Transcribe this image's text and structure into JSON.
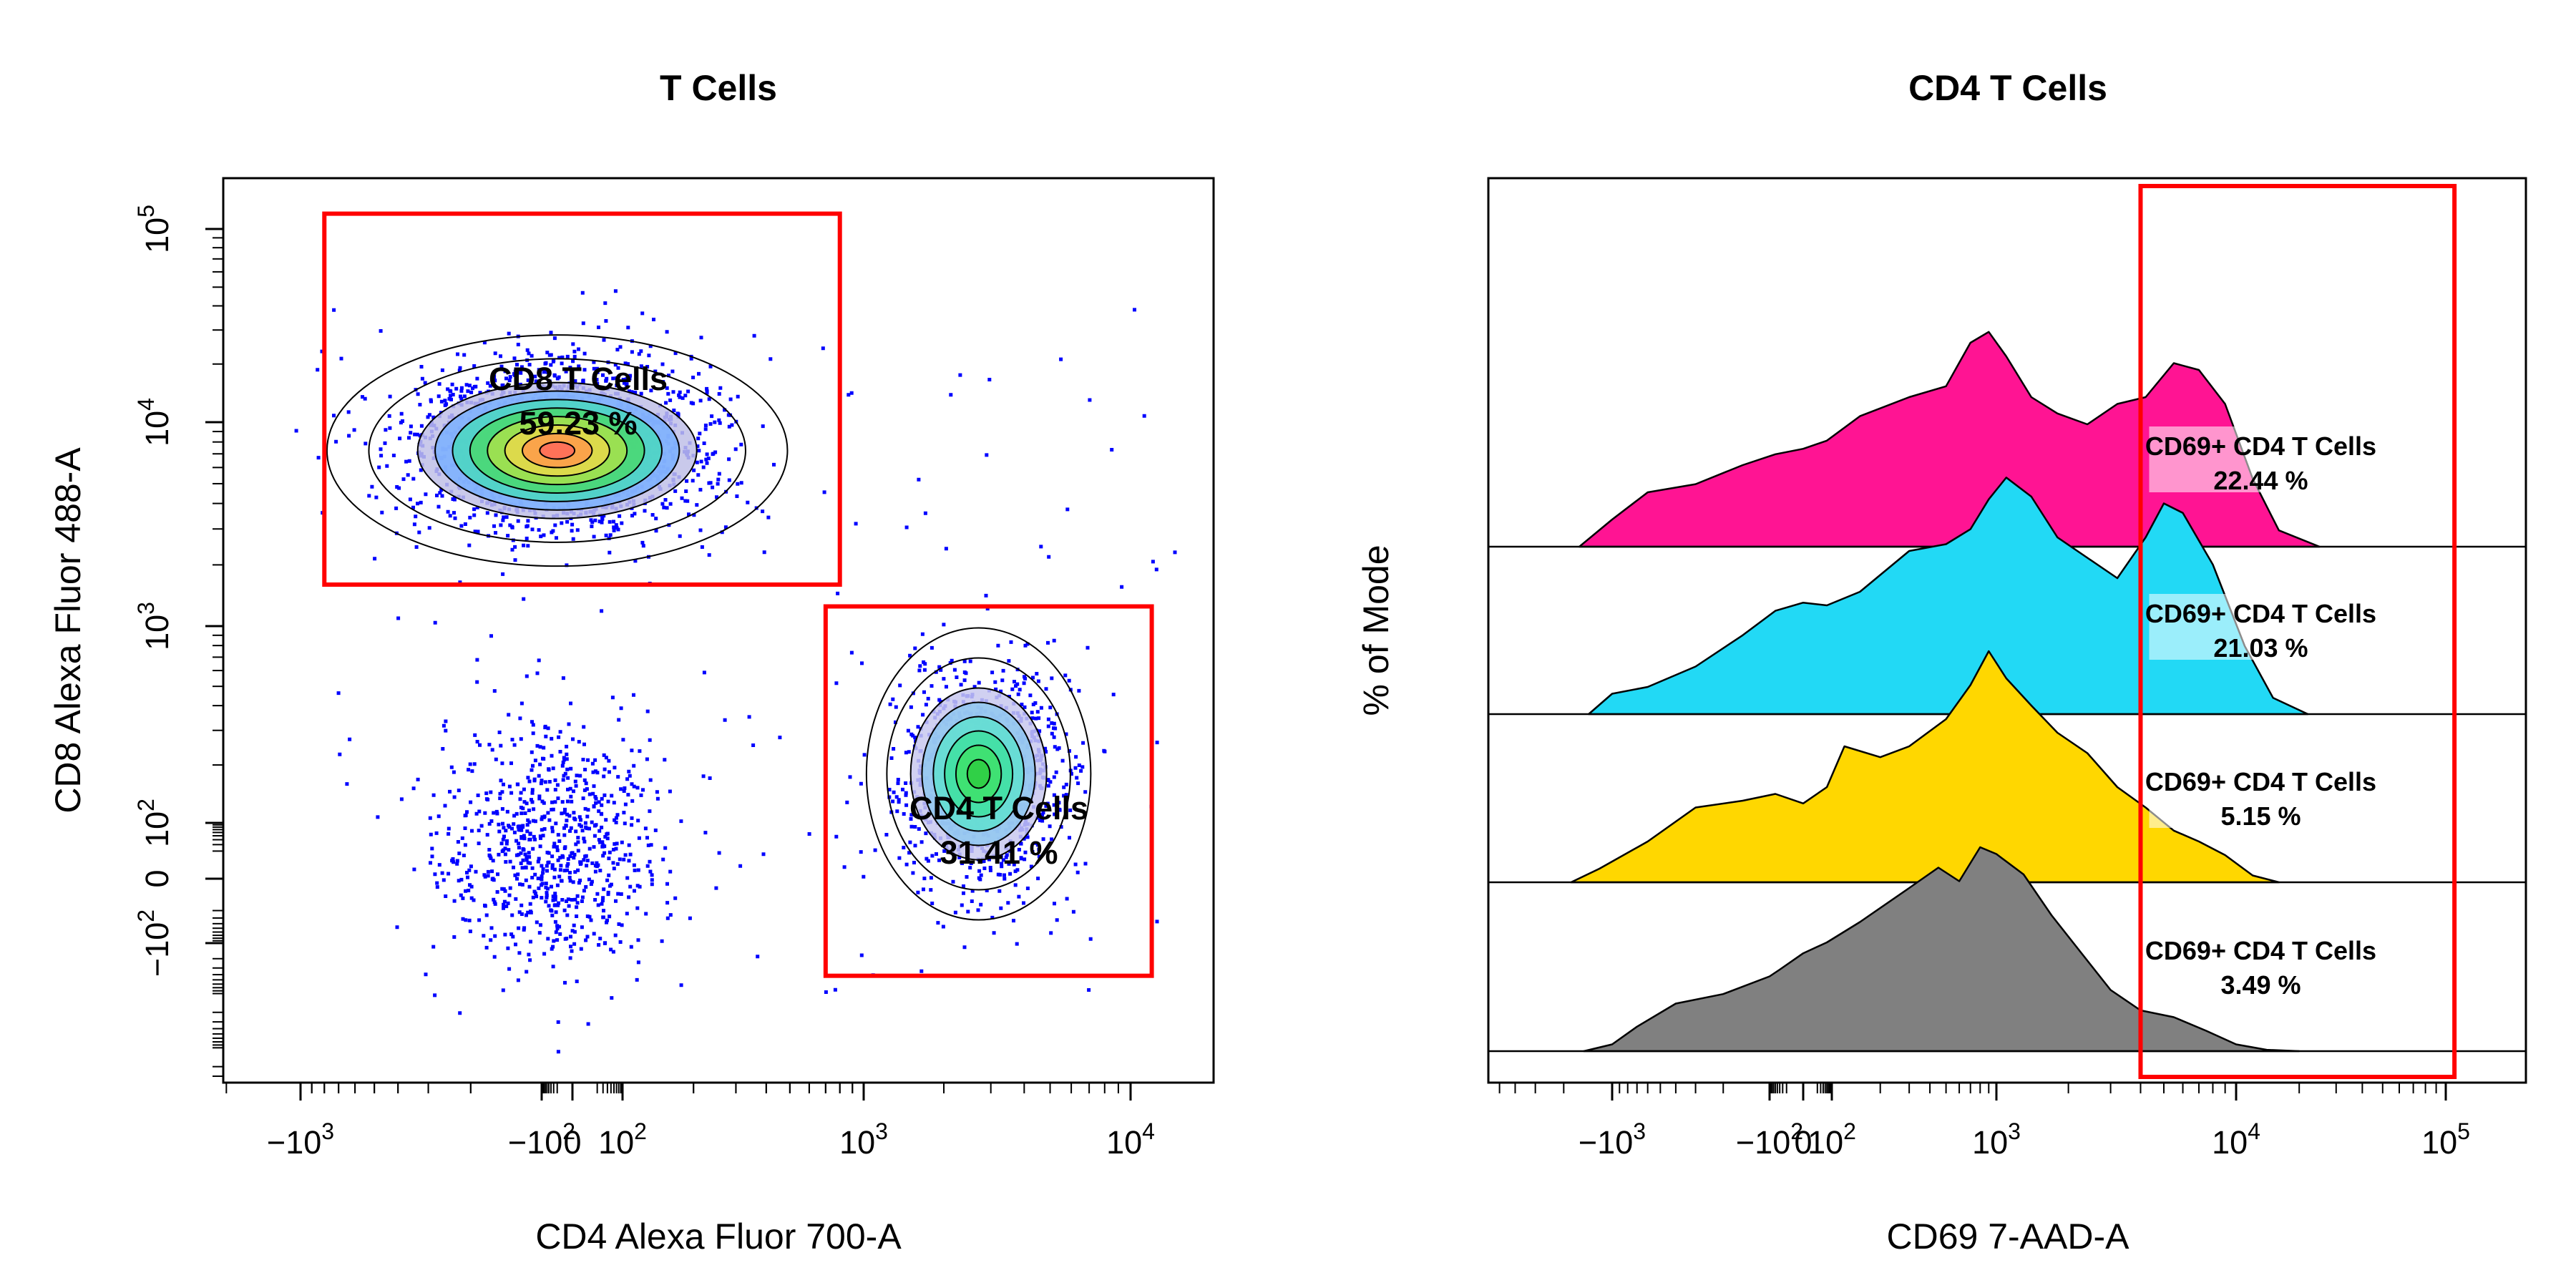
{
  "chart_data": [
    {
      "type": "scatter",
      "subtype": "flow-cytometry-dot-plot-with-density-contours",
      "title": "T Cells",
      "xlabel": "CD4 Alexa Fluor 700-A",
      "ylabel": "CD8 Alexa Fluor 488-A",
      "scale": "biexponential",
      "xlim": [
        -2000,
        30000
      ],
      "ylim": [
        -400,
        150000
      ],
      "x_ticks": [
        {
          "label": "−10",
          "sup": "3",
          "value": -1000
        },
        {
          "label": "−10",
          "sup": "2",
          "value": -100
        },
        {
          "label": "0",
          "sup": "",
          "value": 0
        },
        {
          "label": "10",
          "sup": "2",
          "value": 100
        },
        {
          "label": "10",
          "sup": "3",
          "value": 1000
        },
        {
          "label": "10",
          "sup": "4",
          "value": 10000
        }
      ],
      "y_ticks": [
        {
          "label": "10",
          "sup": "5",
          "value": 100000
        },
        {
          "label": "10",
          "sup": "4",
          "value": 10000
        },
        {
          "label": "10",
          "sup": "3",
          "value": 1000
        },
        {
          "label": "10",
          "sup": "2",
          "value": 100
        },
        {
          "label": "0",
          "sup": "",
          "value": 0
        },
        {
          "label": "−10",
          "sup": "2",
          "value": -100
        }
      ],
      "point_color": "#0000ff",
      "populations": [
        {
          "name": "CD8+ cluster",
          "x_center": -20,
          "y_center": 8000,
          "approx_points": 1900
        },
        {
          "name": "CD4+ cluster",
          "x_center": 2700,
          "y_center": 180,
          "approx_points": 1100
        },
        {
          "name": "double-negative cluster",
          "x_center": -40,
          "y_center": 30,
          "approx_points": 750
        }
      ],
      "gates": [
        {
          "label": "CD8 T Cells",
          "percent": "59.23 %",
          "x_range": [
            -800,
            800
          ],
          "y_range": [
            1600,
            120000
          ],
          "color": "#ff0000"
        },
        {
          "label": "CD4 T Cells",
          "percent": "31.41 %",
          "x_range": [
            700,
            12000
          ],
          "y_range": [
            -420,
            1250
          ],
          "color": "#ff0000"
        }
      ]
    },
    {
      "type": "area",
      "subtype": "stacked-offset-histograms",
      "title": "CD4 T Cells",
      "xlabel": "CD69 7-AAD-A",
      "ylabel": "% of Mode",
      "scale": "biexponential",
      "xlim": [
        -2500,
        150000
      ],
      "x_ticks": [
        {
          "label": "−10",
          "sup": "3",
          "value": -1000
        },
        {
          "label": "−10",
          "sup": "2",
          "value": -100
        },
        {
          "label": "0",
          "sup": "",
          "value": 0
        },
        {
          "label": "10",
          "sup": "2",
          "value": 100
        },
        {
          "label": "10",
          "sup": "3",
          "value": 1000
        },
        {
          "label": "10",
          "sup": "4",
          "value": 10000
        },
        {
          "label": "10",
          "sup": "5",
          "value": 100000
        }
      ],
      "gate": {
        "x_range": [
          4000,
          110000
        ],
        "color": "#ff0000"
      },
      "series": [
        {
          "label": "CD69+ CD4 T Cells",
          "percent": "22.44 %",
          "color": "#ff1493",
          "x": [
            -1600,
            -1000,
            -600,
            -300,
            -150,
            -60,
            0,
            60,
            150,
            300,
            500,
            700,
            900,
            1100,
            1400,
            1800,
            2400,
            3200,
            4200,
            5500,
            7000,
            9000,
            12000,
            16000,
            25000
          ],
          "y": [
            0,
            0.2,
            0.4,
            0.46,
            0.6,
            0.68,
            0.72,
            0.78,
            0.96,
            1.1,
            1.18,
            1.5,
            1.58,
            1.4,
            1.1,
            0.98,
            0.9,
            1.05,
            1.1,
            1.35,
            1.3,
            1.05,
            0.5,
            0.12,
            0
          ]
        },
        {
          "label": "CD69+ CD4 T Cells",
          "percent": "21.03 %",
          "color": "#22d9f5",
          "x": [
            -1400,
            -1000,
            -600,
            -300,
            -150,
            -60,
            0,
            60,
            150,
            300,
            500,
            700,
            900,
            1100,
            1400,
            1800,
            2400,
            3200,
            4200,
            5000,
            6000,
            8000,
            11000,
            15000,
            22000
          ],
          "y": [
            0,
            0.15,
            0.2,
            0.35,
            0.58,
            0.76,
            0.82,
            0.8,
            0.9,
            1.2,
            1.25,
            1.36,
            1.58,
            1.74,
            1.6,
            1.3,
            1.15,
            1.0,
            1.3,
            1.55,
            1.48,
            1.1,
            0.5,
            0.12,
            0
          ]
        },
        {
          "label": "CD69+ CD4 T Cells",
          "percent": "5.15 %",
          "color": "#ffd700",
          "x": [
            -1800,
            -1200,
            -600,
            -300,
            -150,
            -60,
            0,
            60,
            120,
            200,
            300,
            500,
            700,
            900,
            1100,
            1400,
            1800,
            2400,
            3200,
            4200,
            5500,
            7000,
            9000,
            12000,
            16000
          ],
          "y": [
            0,
            0.1,
            0.3,
            0.55,
            0.6,
            0.65,
            0.58,
            0.7,
            1.0,
            0.92,
            1.0,
            1.2,
            1.45,
            1.7,
            1.5,
            1.3,
            1.1,
            0.95,
            0.7,
            0.55,
            0.38,
            0.3,
            0.2,
            0.05,
            0
          ]
        },
        {
          "label": "CD69+ CD4 T Cells",
          "percent": "3.49 %",
          "color": "#808080",
          "x": [
            -1500,
            -1000,
            -700,
            -400,
            -200,
            -100,
            -40,
            0,
            60,
            150,
            300,
            450,
            600,
            800,
            1000,
            1300,
            1700,
            2200,
            3000,
            4000,
            5500,
            7500,
            10000,
            14000,
            20000
          ],
          "y": [
            0,
            0.05,
            0.18,
            0.35,
            0.42,
            0.55,
            0.6,
            0.72,
            0.8,
            0.95,
            1.2,
            1.35,
            1.25,
            1.5,
            1.45,
            1.3,
            1.0,
            0.75,
            0.45,
            0.3,
            0.25,
            0.15,
            0.05,
            0.01,
            0
          ]
        }
      ]
    }
  ]
}
